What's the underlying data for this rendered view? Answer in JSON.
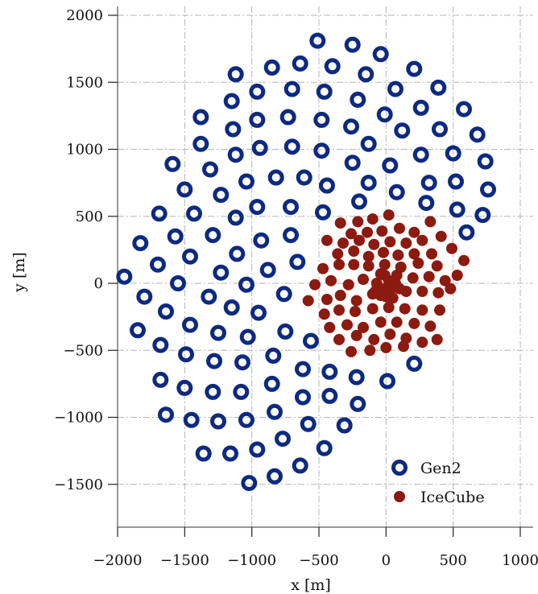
{
  "chart_data": {
    "type": "scatter",
    "xlabel": "x [m]",
    "ylabel": "y [m]",
    "xlim": [
      -2000,
      1000
    ],
    "ylim": [
      -1800,
      2000
    ],
    "x_ticks": [
      -2000,
      -1500,
      -1000,
      -500,
      0,
      500,
      1000
    ],
    "y_ticks": [
      -1500,
      -1000,
      -500,
      0,
      500,
      1000,
      1500,
      2000
    ],
    "x_tick_labels": [
      "−2000",
      "−1500",
      "−1000",
      "−500",
      "0",
      "500",
      "1000"
    ],
    "y_tick_labels": [
      "−1500",
      "−1000",
      "−500",
      "0",
      "500",
      "1000",
      "1500",
      "2000"
    ],
    "grid": true,
    "legend_position": "bottom-right",
    "colors": {
      "gen2": "#0d2a80",
      "icecube": "#8b1a10",
      "grid": "#b5b5b5"
    },
    "series": [
      {
        "name": "Gen2",
        "marker": "ring",
        "points": [
          [
            -510,
            1810
          ],
          [
            -250,
            1780
          ],
          [
            -40,
            1710
          ],
          [
            210,
            1600
          ],
          [
            -850,
            1610
          ],
          [
            -640,
            1640
          ],
          [
            -400,
            1620
          ],
          [
            -150,
            1560
          ],
          [
            -1120,
            1560
          ],
          [
            390,
            1460
          ],
          [
            -700,
            1450
          ],
          [
            -960,
            1430
          ],
          [
            -460,
            1430
          ],
          [
            -210,
            1370
          ],
          [
            70,
            1450
          ],
          [
            -1150,
            1360
          ],
          [
            580,
            1300
          ],
          [
            260,
            1310
          ],
          [
            -1380,
            1240
          ],
          [
            -730,
            1240
          ],
          [
            -960,
            1220
          ],
          [
            -480,
            1220
          ],
          [
            -260,
            1170
          ],
          [
            -10,
            1260
          ],
          [
            -1140,
            1150
          ],
          [
            400,
            1150
          ],
          [
            120,
            1140
          ],
          [
            680,
            1110
          ],
          [
            -1380,
            1040
          ],
          [
            -700,
            1020
          ],
          [
            -940,
            1010
          ],
          [
            -480,
            990
          ],
          [
            -130,
            1040
          ],
          [
            -1120,
            960
          ],
          [
            500,
            970
          ],
          [
            260,
            960
          ],
          [
            -1590,
            890
          ],
          [
            -250,
            900
          ],
          [
            740,
            910
          ],
          [
            30,
            880
          ],
          [
            -1310,
            850
          ],
          [
            -820,
            790
          ],
          [
            -1040,
            760
          ],
          [
            -610,
            790
          ],
          [
            -440,
            730
          ],
          [
            -130,
            750
          ],
          [
            520,
            760
          ],
          [
            320,
            750
          ],
          [
            -1500,
            700
          ],
          [
            -1230,
            660
          ],
          [
            80,
            680
          ],
          [
            760,
            700
          ],
          [
            -200,
            610
          ],
          [
            300,
            600
          ],
          [
            -960,
            570
          ],
          [
            -710,
            570
          ],
          [
            -470,
            530
          ],
          [
            530,
            550
          ],
          [
            -1690,
            520
          ],
          [
            -1430,
            520
          ],
          [
            -1120,
            490
          ],
          [
            720,
            510
          ],
          [
            -1830,
            300
          ],
          [
            -1570,
            350
          ],
          [
            -1290,
            360
          ],
          [
            -930,
            320
          ],
          [
            -710,
            360
          ],
          [
            600,
            380
          ],
          [
            -1460,
            200
          ],
          [
            -1110,
            220
          ],
          [
            -880,
            100
          ],
          [
            -660,
            160
          ],
          [
            -1700,
            140
          ],
          [
            -1230,
            80
          ],
          [
            -1950,
            50
          ],
          [
            -1550,
            0
          ],
          [
            -1040,
            -10
          ],
          [
            -1800,
            -100
          ],
          [
            -1320,
            -100
          ],
          [
            -760,
            -80
          ],
          [
            -1640,
            -210
          ],
          [
            -1150,
            -180
          ],
          [
            -950,
            -220
          ],
          [
            -1850,
            -350
          ],
          [
            -1460,
            -310
          ],
          [
            -1250,
            -370
          ],
          [
            -1030,
            -400
          ],
          [
            -750,
            -360
          ],
          [
            -560,
            -430
          ],
          [
            -1680,
            -460
          ],
          [
            -1490,
            -530
          ],
          [
            -1280,
            -580
          ],
          [
            -1070,
            -590
          ],
          [
            -840,
            -540
          ],
          [
            -620,
            -640
          ],
          [
            -420,
            -660
          ],
          [
            -220,
            -700
          ],
          [
            10,
            -730
          ],
          [
            210,
            -600
          ],
          [
            -1680,
            -720
          ],
          [
            -1500,
            -780
          ],
          [
            -1290,
            -810
          ],
          [
            -1080,
            -810
          ],
          [
            -850,
            -750
          ],
          [
            -620,
            -850
          ],
          [
            -420,
            -840
          ],
          [
            -210,
            -900
          ],
          [
            -1640,
            -980
          ],
          [
            -1450,
            -1020
          ],
          [
            -1250,
            -1030
          ],
          [
            -1040,
            -1020
          ],
          [
            -830,
            -960
          ],
          [
            -580,
            -1050
          ],
          [
            -310,
            -1060
          ],
          [
            -1360,
            -1270
          ],
          [
            -1160,
            -1270
          ],
          [
            -960,
            -1240
          ],
          [
            -770,
            -1160
          ],
          [
            -640,
            -1360
          ],
          [
            -460,
            -1230
          ],
          [
            -830,
            -1440
          ],
          [
            -1020,
            -1490
          ]
        ]
      },
      {
        "name": "IceCube",
        "marker": "filled",
        "points": [
          [
            -340,
            450
          ],
          [
            -210,
            460
          ],
          [
            -100,
            480
          ],
          [
            20,
            510
          ],
          [
            330,
            460
          ],
          [
            -260,
            370
          ],
          [
            -140,
            380
          ],
          [
            -30,
            390
          ],
          [
            100,
            410
          ],
          [
            210,
            380
          ],
          [
            -440,
            320
          ],
          [
            -320,
            300
          ],
          [
            -200,
            320
          ],
          [
            -90,
            290
          ],
          [
            30,
            310
          ],
          [
            150,
            300
          ],
          [
            270,
            320
          ],
          [
            410,
            350
          ],
          [
            -360,
            220
          ],
          [
            -240,
            240
          ],
          [
            -130,
            200
          ],
          [
            -20,
            230
          ],
          [
            90,
            210
          ],
          [
            210,
            220
          ],
          [
            340,
            220
          ],
          [
            490,
            260
          ],
          [
            -470,
            110
          ],
          [
            -350,
            140
          ],
          [
            -240,
            140
          ],
          [
            -130,
            130
          ],
          [
            -10,
            140
          ],
          [
            110,
            120
          ],
          [
            240,
            150
          ],
          [
            380,
            130
          ],
          [
            580,
            170
          ],
          [
            -530,
            -10
          ],
          [
            -410,
            20
          ],
          [
            -280,
            -10
          ],
          [
            -170,
            30
          ],
          [
            -40,
            70
          ],
          [
            80,
            60
          ],
          [
            200,
            40
          ],
          [
            320,
            50
          ],
          [
            440,
            20
          ],
          [
            530,
            60
          ],
          [
            -580,
            -130
          ],
          [
            -440,
            -120
          ],
          [
            -340,
            -90
          ],
          [
            -220,
            -130
          ],
          [
            -100,
            -80
          ],
          [
            60,
            -20
          ],
          [
            150,
            -60
          ],
          [
            270,
            -60
          ],
          [
            390,
            -70
          ],
          [
            480,
            -40
          ],
          [
            -460,
            -230
          ],
          [
            -350,
            -200
          ],
          [
            -230,
            -210
          ],
          [
            -100,
            -190
          ],
          [
            20,
            -180
          ],
          [
            140,
            -190
          ],
          [
            270,
            -200
          ],
          [
            400,
            -200
          ],
          [
            -420,
            -330
          ],
          [
            -290,
            -310
          ],
          [
            -170,
            -330
          ],
          [
            -40,
            -290
          ],
          [
            80,
            -290
          ],
          [
            210,
            -300
          ],
          [
            330,
            -320
          ],
          [
            -350,
            -420
          ],
          [
            -220,
            -390
          ],
          [
            -90,
            -420
          ],
          [
            30,
            -380
          ],
          [
            150,
            -410
          ],
          [
            270,
            -440
          ],
          [
            380,
            -420
          ],
          [
            -260,
            -510
          ],
          [
            -120,
            -500
          ],
          [
            0,
            -480
          ],
          [
            130,
            -470
          ],
          [
            20,
            20
          ],
          [
            -30,
            -40
          ],
          [
            30,
            -50
          ],
          [
            -70,
            0
          ],
          [
            70,
            0
          ],
          [
            0,
            -100
          ],
          [
            -40,
            -90
          ],
          [
            50,
            -110
          ],
          [
            -80,
            -60
          ],
          [
            100,
            -40
          ],
          [
            -10,
            60
          ]
        ]
      }
    ]
  }
}
